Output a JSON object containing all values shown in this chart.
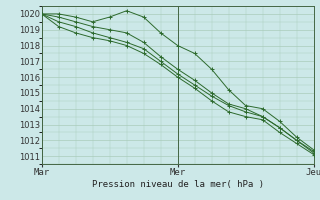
{
  "title": "Pression niveau de la mer( hPa )",
  "bg_color": "#cce8e8",
  "grid_color": "#aaccbb",
  "line_color": "#2d6a2d",
  "xlim": [
    0,
    48
  ],
  "ylim": [
    1010.5,
    1020.5
  ],
  "yticks": [
    1011,
    1012,
    1013,
    1014,
    1015,
    1016,
    1017,
    1018,
    1019,
    1020
  ],
  "xtick_labels": [
    [
      "Mar",
      0
    ],
    [
      "Mer",
      24
    ],
    [
      "Jeu",
      48
    ]
  ],
  "series": [
    [
      0,
      1020,
      3,
      1020,
      6,
      1019.8,
      9,
      1019.5,
      12,
      1019.8,
      15,
      1020.2,
      18,
      1019.8,
      21,
      1018.8,
      24,
      1018.0,
      27,
      1017.5,
      30,
      1016.5,
      33,
      1015.2,
      36,
      1014.2,
      39,
      1014.0,
      42,
      1013.2,
      45,
      1012.2,
      48,
      1011.4
    ],
    [
      0,
      1020,
      3,
      1019.2,
      6,
      1018.8,
      9,
      1018.5,
      12,
      1018.3,
      15,
      1018.0,
      18,
      1017.5,
      21,
      1016.8,
      24,
      1016.0,
      27,
      1015.3,
      30,
      1014.5,
      33,
      1013.8,
      36,
      1013.5,
      39,
      1013.3,
      42,
      1012.5,
      45,
      1011.8,
      48,
      1011.1
    ],
    [
      0,
      1020,
      3,
      1019.5,
      6,
      1019.2,
      9,
      1018.8,
      12,
      1018.5,
      15,
      1018.2,
      18,
      1017.8,
      21,
      1017.0,
      24,
      1016.2,
      27,
      1015.5,
      30,
      1014.8,
      33,
      1014.2,
      36,
      1013.8,
      39,
      1013.5,
      42,
      1012.8,
      45,
      1012.0,
      48,
      1011.3
    ],
    [
      0,
      1020,
      3,
      1019.8,
      6,
      1019.5,
      9,
      1019.2,
      12,
      1019.0,
      15,
      1018.8,
      18,
      1018.2,
      21,
      1017.3,
      24,
      1016.5,
      27,
      1015.8,
      30,
      1015.0,
      33,
      1014.3,
      36,
      1014.0,
      39,
      1013.5,
      42,
      1012.8,
      45,
      1012.0,
      48,
      1011.2
    ]
  ]
}
